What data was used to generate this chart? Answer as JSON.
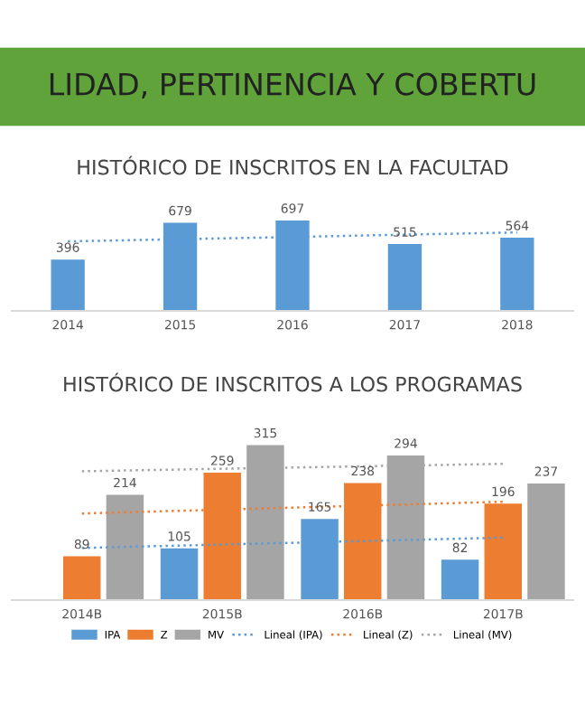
{
  "chart_data": [
    {
      "type": "other",
      "title": "LIDAD, PERTINENCIA Y COBERTU",
      "color": "#5fa33a"
    },
    {
      "type": "bar",
      "title": "HISTÓRICO DE INSCRITOS EN LA FACULTAD",
      "categories": [
        "2014",
        "2015",
        "2016",
        "2017",
        "2018"
      ],
      "legend": false,
      "series": [
        {
          "color": "#5b9bd5",
          "values": [
            396,
            679,
            697,
            515,
            564
          ],
          "value_labels": [
            "396",
            "679",
            "697",
            "515",
            "564"
          ]
        },
        {
          "type": "line",
          "line_style": "dotted",
          "color": "#5b9bd5",
          "values": [
            536,
            553,
            570,
            588,
            605
          ]
        }
      ]
    },
    {
      "type": "bar",
      "title": "HISTÓRICO DE INSCRITOS A LOS PROGRAMAS",
      "categories": [
        "2014B",
        "2015B",
        "2016B",
        "2017B"
      ],
      "legend": "bottom",
      "series": [
        {
          "name": "IPA",
          "color": "#5b9bd5",
          "values": [
            null,
            105,
            165,
            82
          ],
          "value_labels": [
            null,
            "105",
            "165",
            "82"
          ]
        },
        {
          "name": "Z",
          "color": "#ed7d31",
          "values": [
            89,
            259,
            238,
            196
          ],
          "value_labels": [
            "89",
            "259",
            "238",
            "196"
          ]
        },
        {
          "name": "MV",
          "color": "#a5a5a5",
          "values": [
            214,
            315,
            294,
            237
          ],
          "value_labels": [
            "214",
            "315",
            "294",
            "237"
          ]
        },
        {
          "name": "Lineal (IPA)",
          "type": "line",
          "line_style": "dotted",
          "color": "#5b9bd5",
          "values": [
            106,
            113,
            120,
            127
          ]
        },
        {
          "name": "Lineal (Z)",
          "type": "line",
          "line_style": "dotted",
          "color": "#ed7d31",
          "values": [
            176,
            184,
            192,
            200
          ]
        },
        {
          "name": "Lineal (MV)",
          "type": "line",
          "line_style": "dotted",
          "color": "#a5a5a5",
          "values": [
            262,
            267,
            272,
            277
          ]
        }
      ]
    }
  ]
}
